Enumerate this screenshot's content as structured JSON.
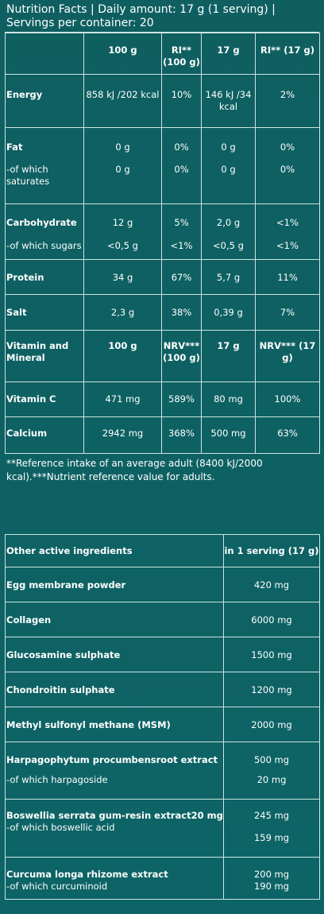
{
  "title_line1": "Nutrition Facts | Daily amount: 17 g (1 serving) |",
  "title_line2": "Servings per container: 20",
  "nutrition": {
    "headers": [
      "",
      "100 g",
      "RI** (100 g)",
      "17 g",
      "RI** (17 g)"
    ],
    "rows": {
      "energy": [
        "Energy",
        "858 kJ /202 kcal",
        "10%",
        "146 kJ /34 kcal",
        "2%"
      ],
      "fat": [
        "Fat",
        "0 g",
        "0%",
        "0 g",
        "0%"
      ],
      "saturates": [
        "-of which saturates",
        "0 g",
        "0%",
        "0 g",
        "0%"
      ],
      "carb": [
        "Carbohydrate",
        "12 g",
        "5%",
        "2,0 g",
        "<1%"
      ],
      "sugars": [
        "-of which sugars",
        "<0,5 g",
        "<1%",
        "<0,5 g",
        "<1%"
      ],
      "protein": [
        "Protein",
        "34 g",
        "67%",
        "5,7 g",
        "11%"
      ],
      "salt": [
        "Salt",
        "2,3 g",
        "38%",
        "0,39 g",
        "7%"
      ],
      "vit_hdr": [
        "Vitamin and Mineral",
        "100 g",
        "NRV*** (100 g)",
        "17 g",
        "NRV*** (17 g)"
      ],
      "vitc": [
        "Vitamin C",
        "471 mg",
        "589%",
        "80 mg",
        "100%"
      ],
      "calcium": [
        "Calcium",
        "2942 mg",
        "368%",
        "500 mg",
        "63%"
      ]
    },
    "footnote": "**Reference intake of an average adult (8400 kJ/2000 kcal).***Nutrient reference value for adults."
  },
  "ingredients": {
    "header": [
      "Other active ingredients",
      "in 1 serving (17 g)"
    ],
    "egg": [
      "Egg membrane powder",
      "420 mg"
    ],
    "collagen": [
      "Collagen",
      "6000 mg"
    ],
    "glucosamine": [
      "Glucosamine sulphate",
      "1500 mg"
    ],
    "chondroitin": [
      "Chondroitin sulphate",
      "1200 mg"
    ],
    "msm": [
      "Methyl sulfonyl methane (MSM)",
      "2000 mg"
    ],
    "harpago": [
      "Harpagophytum procumbensroot extract",
      "500 mg"
    ],
    "harpago_sub": [
      "-of which harpagoside",
      "20 mg"
    ],
    "boswellia": [
      "Boswellia serrata gum-resin extract20 mg",
      "245 mg"
    ],
    "boswellia_sub": [
      "-of which boswellic acid",
      "159 mg"
    ],
    "curcuma": [
      "Curcuma longa rhizome extract",
      "200 mg"
    ],
    "curcuma_sub": [
      "-of which curcuminoid",
      "190 mg"
    ]
  }
}
